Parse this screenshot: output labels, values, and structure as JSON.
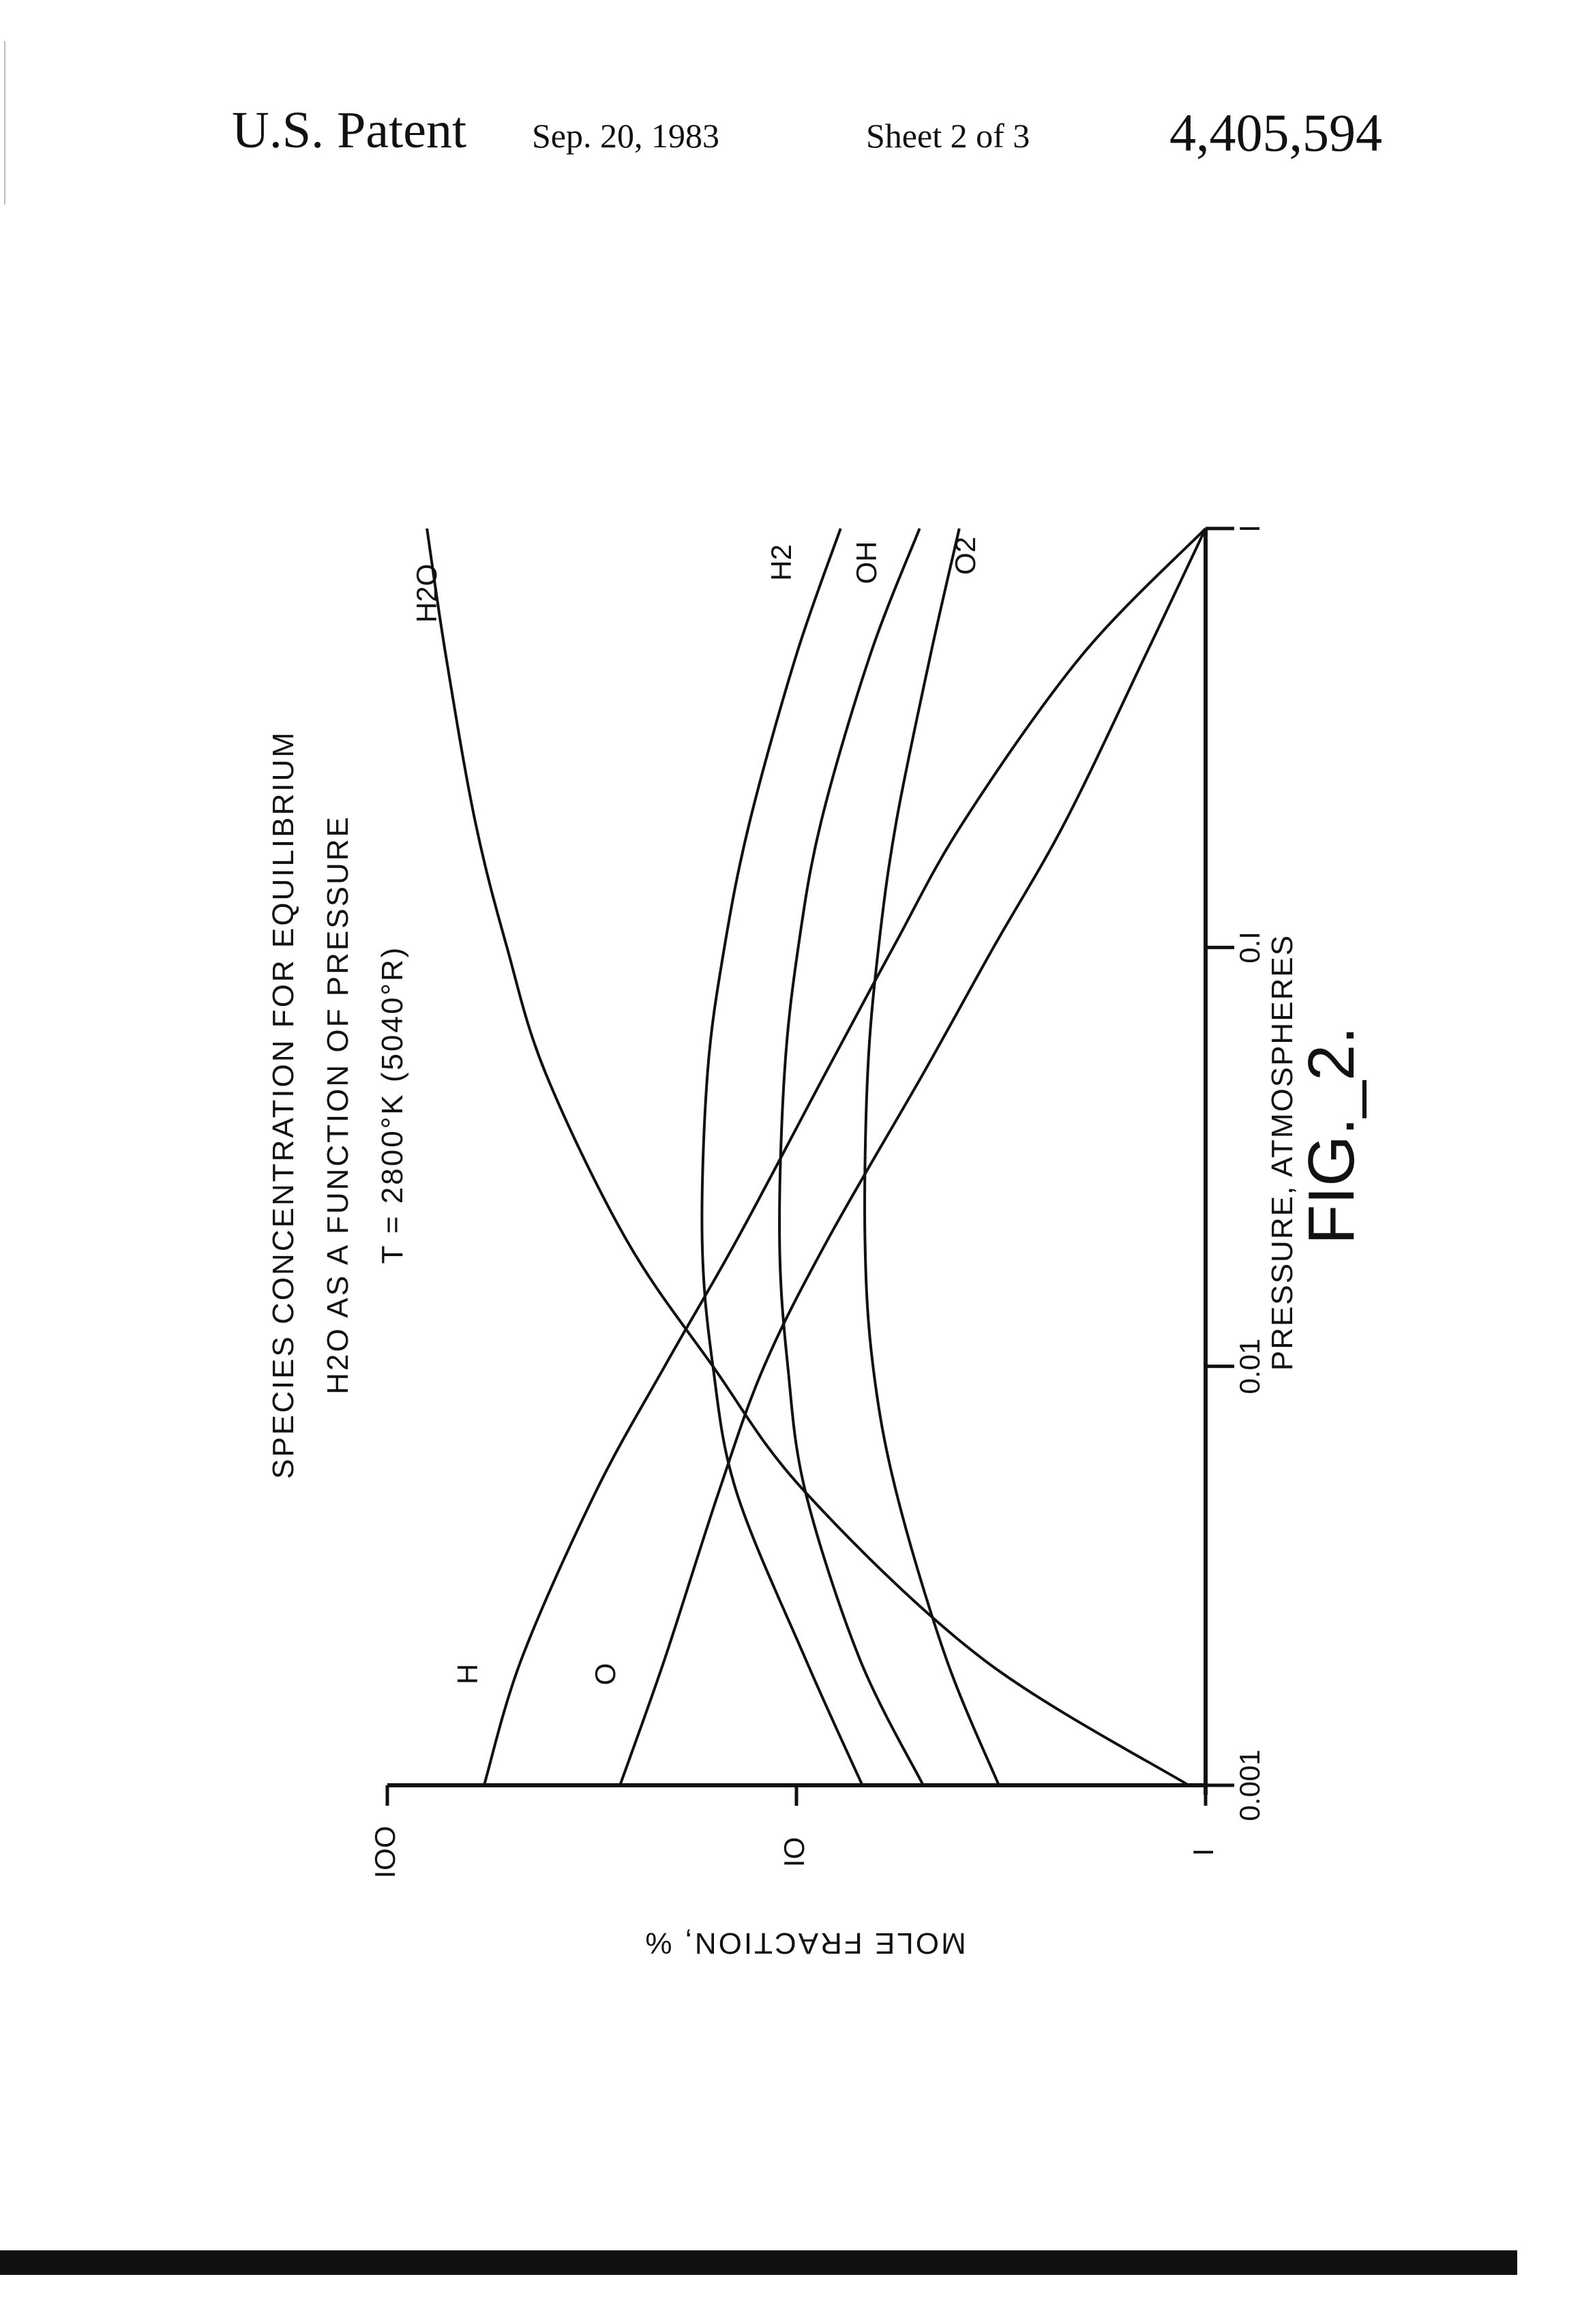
{
  "header": {
    "title": "U.S. Patent",
    "date": "Sep. 20, 1983",
    "sheet": "Sheet 2 of 3",
    "patent_number": "4,405,594"
  },
  "chart_data": {
    "type": "line",
    "title_lines": [
      "SPECIES CONCENTRATION FOR EQUILIBRIUM",
      "H2O AS A FUNCTION OF PRESSURE",
      "T = 2800°K (5040°R)"
    ],
    "xlabel": "PRESSURE, ATMOSPHERES",
    "ylabel": "MOLE FRACTION, %",
    "x_scale": "log",
    "y_scale": "log",
    "xlim": [
      0.001,
      1
    ],
    "ylim": [
      1,
      100
    ],
    "x_ticks": [
      {
        "value": 0.001,
        "label": "0.001"
      },
      {
        "value": 0.01,
        "label": "0.01"
      },
      {
        "value": 0.1,
        "label": "0.I"
      },
      {
        "value": 1,
        "label": "I"
      }
    ],
    "y_ticks": [
      {
        "value": 1,
        "label": "I"
      },
      {
        "value": 10,
        "label": "IO"
      },
      {
        "value": 100,
        "label": "IOO"
      }
    ],
    "grid": false,
    "series": [
      {
        "name": "H",
        "x": [
          0.001,
          0.002,
          0.005,
          0.01,
          0.02,
          0.05,
          0.1,
          0.2,
          0.5,
          1.0
        ],
        "y": [
          58,
          47,
          31,
          21,
          14,
          8.5,
          5.8,
          3.9,
          2.0,
          1.0
        ]
      },
      {
        "name": "O",
        "x": [
          0.001,
          0.002,
          0.005,
          0.01,
          0.02,
          0.05,
          0.1,
          0.2,
          0.5,
          1.0
        ],
        "y": [
          27,
          21,
          15.5,
          12,
          8.4,
          4.9,
          3.3,
          2.2,
          1.4,
          1.0
        ]
      },
      {
        "name": "H2O",
        "x": [
          0.001,
          0.002,
          0.005,
          0.01,
          0.02,
          0.05,
          0.1,
          0.2,
          0.5,
          1.0
        ],
        "y": [
          1.1,
          3.5,
          9.5,
          16,
          26,
          41,
          51,
          61,
          72,
          80
        ]
      },
      {
        "name": "H2",
        "x": [
          0.001,
          0.002,
          0.005,
          0.01,
          0.02,
          0.05,
          0.1,
          0.2,
          0.5,
          1.0
        ],
        "y": [
          6.9,
          9.5,
          14,
          16,
          17,
          16.5,
          15,
          13,
          10,
          7.8
        ]
      },
      {
        "name": "OH",
        "x": [
          0.001,
          0.002,
          0.005,
          0.01,
          0.02,
          0.05,
          0.1,
          0.2,
          0.5,
          1.0
        ],
        "y": [
          4.9,
          7.0,
          9.5,
          10.5,
          11,
          10.7,
          9.9,
          8.7,
          6.6,
          5.0
        ]
      },
      {
        "name": "O2",
        "x": [
          0.001,
          0.002,
          0.005,
          0.01,
          0.02,
          0.05,
          0.1,
          0.2,
          0.5,
          1.0
        ],
        "y": [
          3.2,
          4.3,
          5.7,
          6.5,
          6.8,
          6.7,
          6.3,
          5.7,
          4.7,
          4.0
        ]
      }
    ],
    "figure_label": "FIG._2."
  }
}
